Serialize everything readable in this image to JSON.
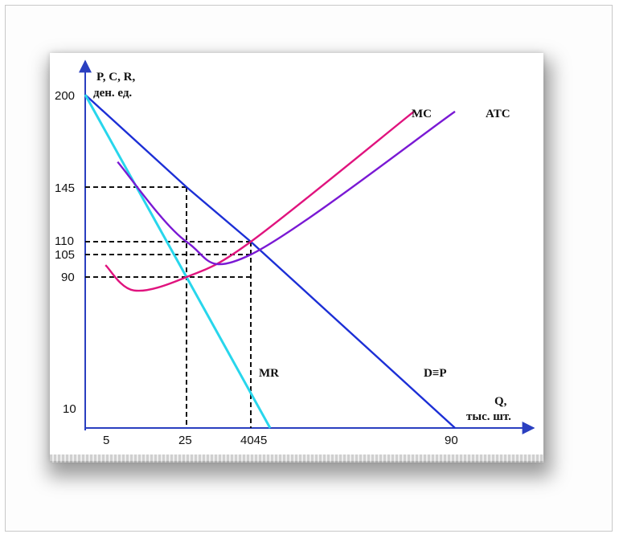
{
  "chart_data": {
    "type": "line",
    "title": "",
    "ylabel_line1": "P, C, R,",
    "ylabel_line2": "ден. ед.",
    "xlabel_line1": "Q,",
    "xlabel_line2": "тыс. шт.",
    "y_ticks": [
      "200",
      "145",
      "110",
      "105",
      "90",
      "10"
    ],
    "x_ticks": [
      "5",
      "25",
      "4045",
      "90"
    ],
    "xlim": [
      0,
      90
    ],
    "ylim": [
      0,
      200
    ],
    "series": [
      {
        "name": "D≡P",
        "color": "#1c2fd6",
        "x": [
          0,
          25,
          40,
          90
        ],
        "y": [
          200,
          145,
          110,
          0
        ]
      },
      {
        "name": "MR",
        "color": "#28d6ec",
        "x": [
          0,
          25,
          45
        ],
        "y": [
          200,
          90,
          0
        ]
      },
      {
        "name": "MC",
        "color": "#e0137e",
        "x": [
          5,
          12,
          25,
          40,
          80
        ],
        "y": [
          98,
          82,
          90,
          110,
          190
        ]
      },
      {
        "name": "ATC",
        "color": "#7a19d4",
        "x": [
          8,
          25,
          40,
          90
        ],
        "y": [
          160,
          110,
          105,
          190
        ]
      }
    ],
    "dashed_guides": [
      {
        "x": 25,
        "y": 145
      },
      {
        "x": 40,
        "y": 110
      },
      {
        "x": 40,
        "y": 105
      },
      {
        "x": 40,
        "y": 90
      }
    ]
  }
}
